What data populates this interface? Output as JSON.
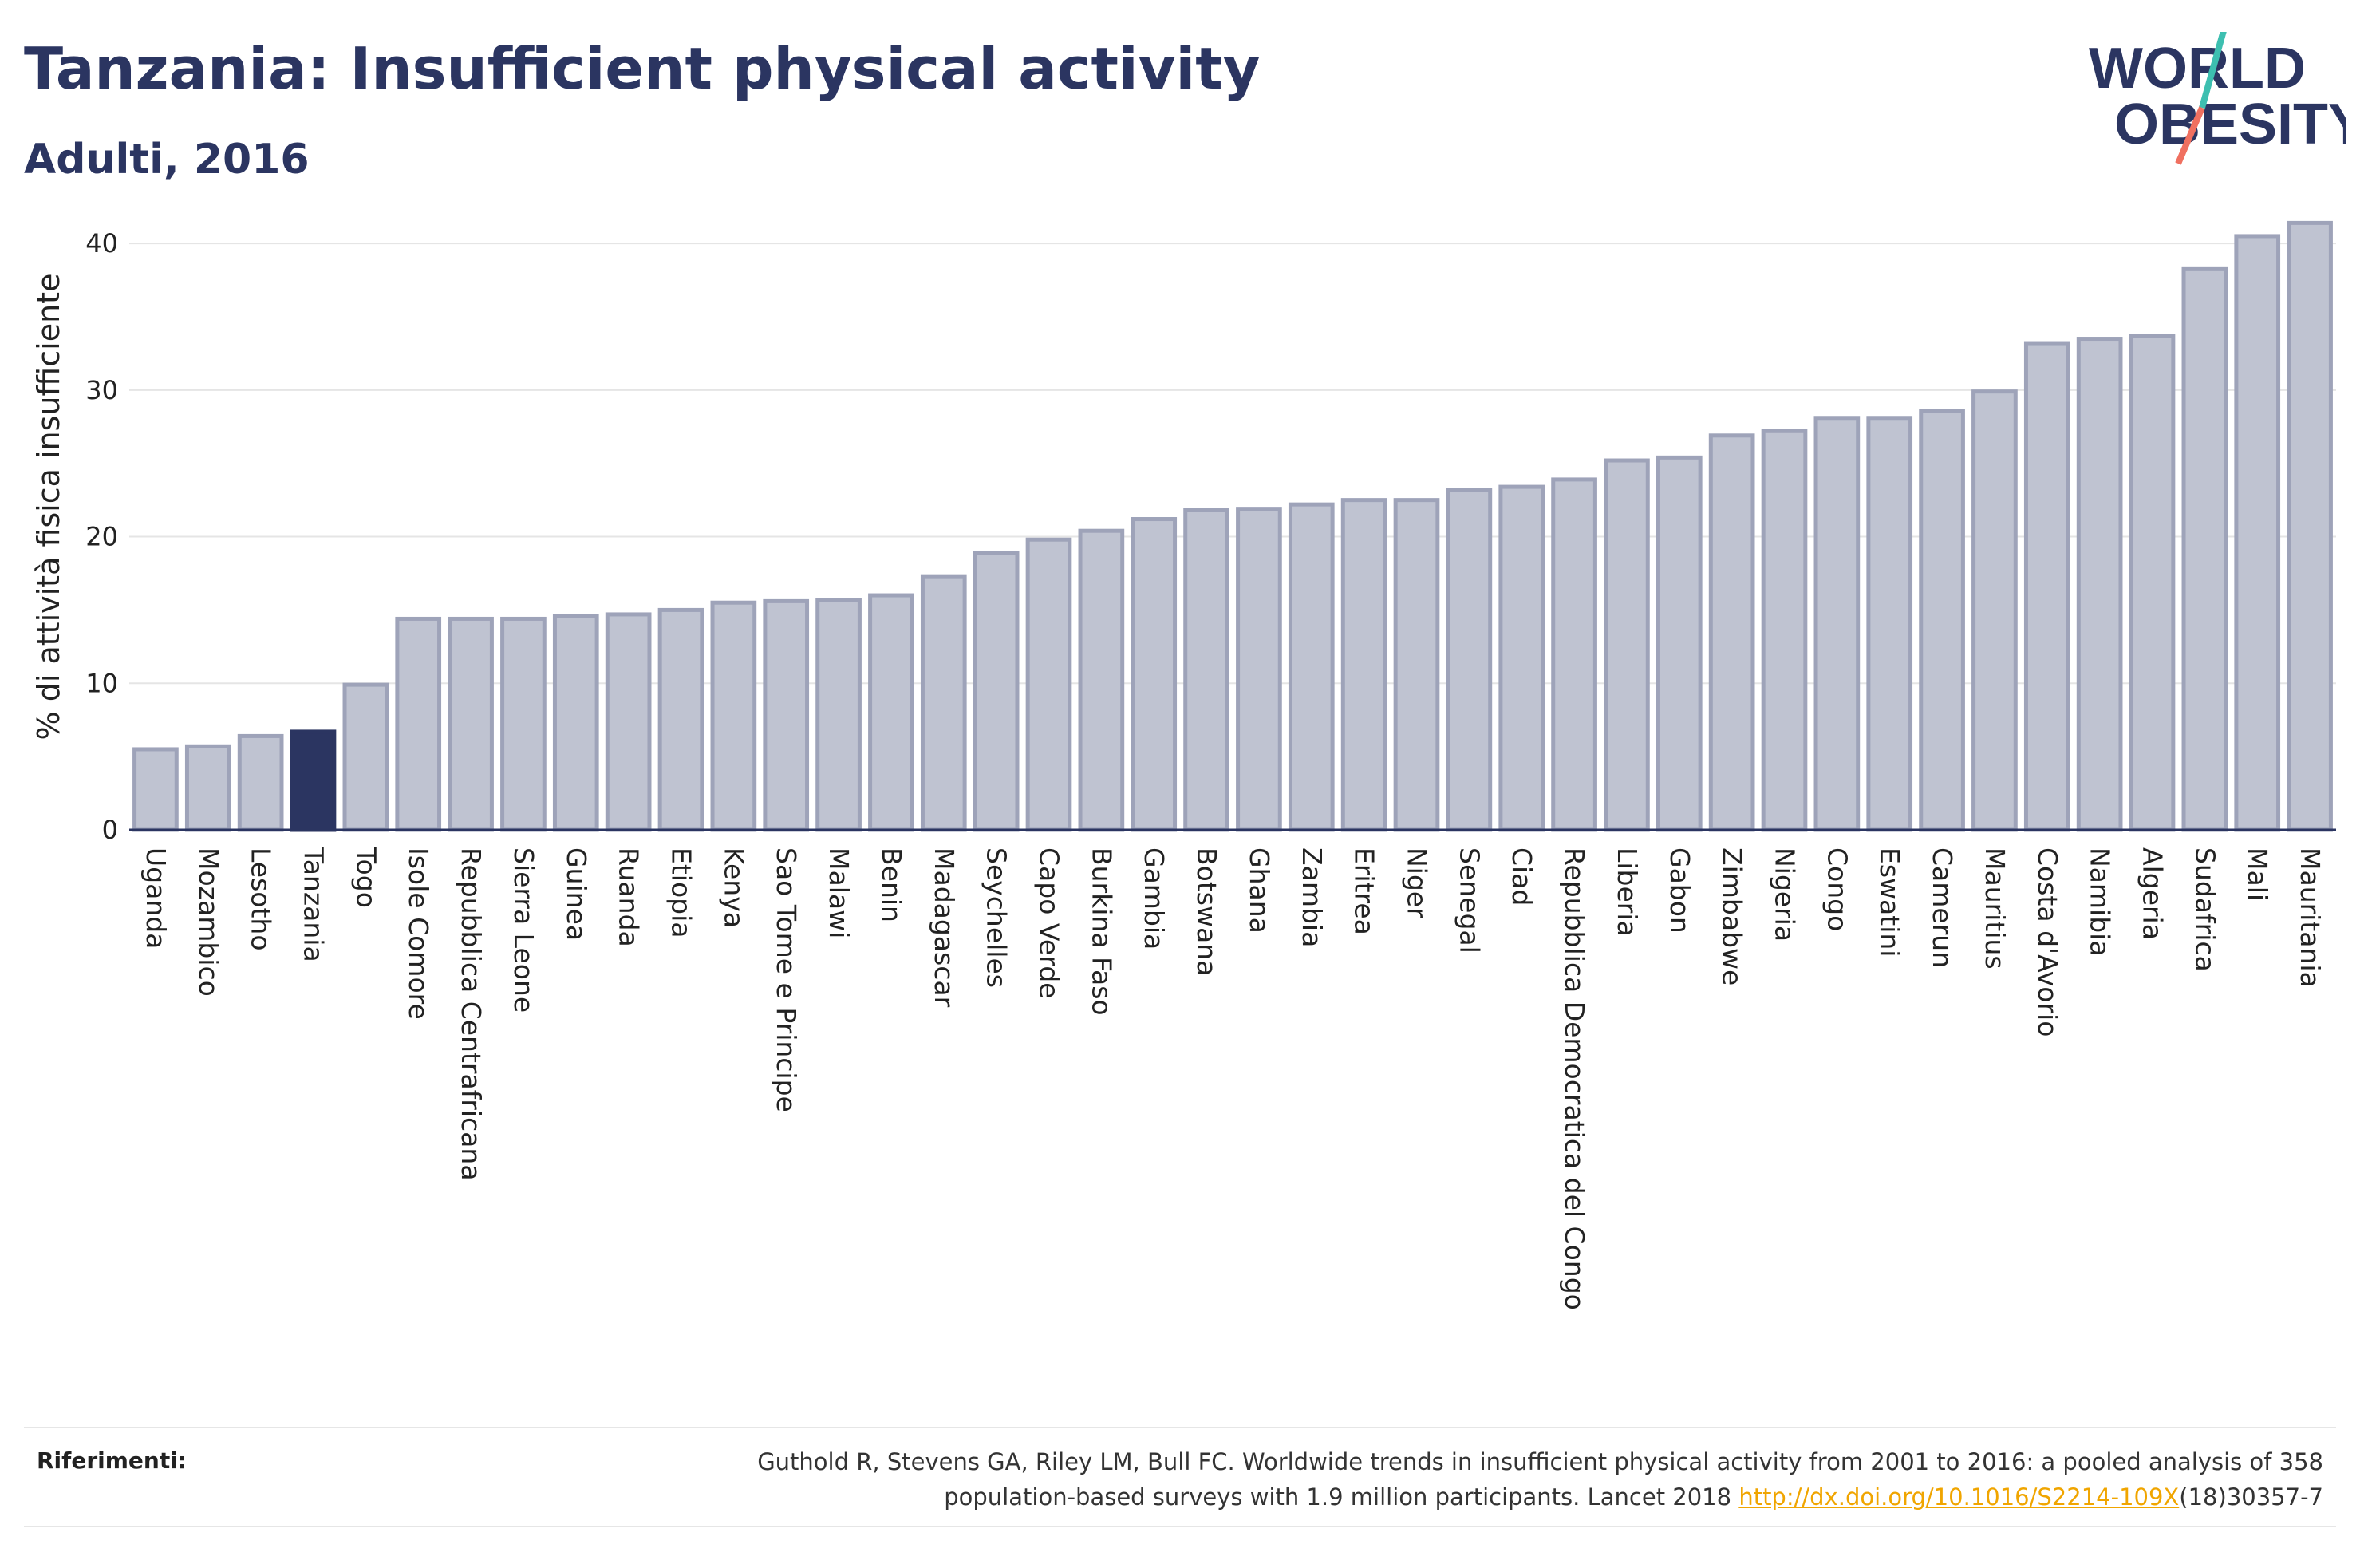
{
  "header": {
    "title": "Tanzania: Insufficient physical activity",
    "subtitle": "Adulti, 2016"
  },
  "logo": {
    "line1": "WORLD",
    "line2": "OBESITY",
    "slash_colors": [
      "#3dbfb0",
      "#f07060"
    ]
  },
  "colors": {
    "bar": "#bfc3d1",
    "bar_border": "#9ea3b9",
    "highlight": "#2b3561",
    "grid": "#e5e5e5",
    "text": "#2b3561"
  },
  "chart_data": {
    "type": "bar",
    "ylabel": "% di attività fisica insufficiente",
    "xlabel": "",
    "ylim": [
      0,
      43
    ],
    "yticks": [
      0,
      10,
      20,
      30,
      40
    ],
    "grid": true,
    "highlight": "Tanzania",
    "categories": [
      "Uganda",
      "Mozambico",
      "Lesotho",
      "Tanzania",
      "Togo",
      "Isole Comore",
      "Repubblica Centrafricana",
      "Sierra Leone",
      "Guinea",
      "Ruanda",
      "Etiopia",
      "Kenya",
      "Sao Tome e Principe",
      "Malawi",
      "Benin",
      "Madagascar",
      "Seychelles",
      "Capo Verde",
      "Burkina Faso",
      "Gambia",
      "Botswana",
      "Ghana",
      "Zambia",
      "Eritrea",
      "Niger",
      "Senegal",
      "Ciad",
      "Repubblica Democratica del Congo",
      "Liberia",
      "Gabon",
      "Zimbabwe",
      "Nigeria",
      "Congo",
      "Eswatini",
      "Camerun",
      "Mauritius",
      "Costa d'Avorio",
      "Namibia",
      "Algeria",
      "Sudafrica",
      "Mali",
      "Mauritania"
    ],
    "values": [
      5.5,
      5.7,
      6.4,
      6.7,
      9.9,
      14.4,
      14.4,
      14.4,
      14.6,
      14.7,
      15.0,
      15.5,
      15.6,
      15.7,
      16.0,
      17.3,
      18.9,
      19.8,
      20.4,
      21.2,
      21.8,
      21.9,
      22.2,
      22.5,
      22.5,
      23.2,
      23.4,
      23.9,
      25.2,
      25.4,
      26.9,
      27.2,
      28.1,
      28.1,
      28.6,
      29.9,
      33.2,
      33.5,
      33.7,
      38.3,
      40.5,
      41.4
    ]
  },
  "references": {
    "label": "Riferimenti:",
    "line1": "Guthold R, Stevens GA, Riley LM, Bull FC. Worldwide trends in insufficient physical activity from 2001 to 2016: a pooled analysis of 358",
    "line2_prefix": "population-based surveys with 1.9 million participants. Lancet 2018 ",
    "link": "http://dx.doi.org/10.1016/S2214-109X",
    "line2_suffix": "(18)30357-7"
  }
}
